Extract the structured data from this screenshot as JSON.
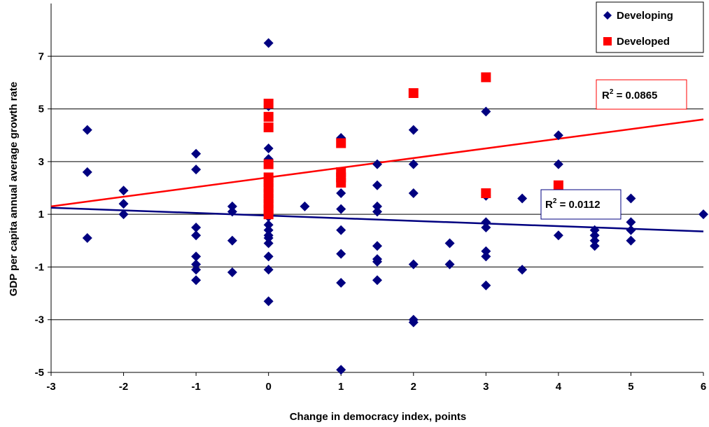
{
  "chart_data": {
    "type": "scatter",
    "title": "",
    "xlabel": "Change in democracy index, points",
    "ylabel": "GDP per capita annual average growth rate",
    "xlim": [
      -3,
      6
    ],
    "ylim": [
      -5,
      9
    ],
    "x_ticks": [
      "-3",
      "-2",
      "-1",
      "0",
      "1",
      "2",
      "3",
      "4",
      "5",
      "6"
    ],
    "y_ticks": [
      "-5",
      "-3",
      "-1",
      "1",
      "3",
      "5",
      "7"
    ],
    "grid": "horizontal",
    "legend_position": "top-right",
    "series": [
      {
        "name": "Developing",
        "marker": "diamond",
        "color": "#000080",
        "points": [
          [
            -2.5,
            4.2
          ],
          [
            -2.5,
            2.6
          ],
          [
            -2.5,
            0.1
          ],
          [
            -2,
            1.9
          ],
          [
            -2,
            1.4
          ],
          [
            -2,
            1.0
          ],
          [
            -1,
            3.3
          ],
          [
            -1,
            2.7
          ],
          [
            -1,
            0.5
          ],
          [
            -1,
            0.2
          ],
          [
            -1,
            -0.6
          ],
          [
            -1,
            -0.9
          ],
          [
            -1,
            -1.1
          ],
          [
            -1,
            -1.5
          ],
          [
            -0.5,
            1.3
          ],
          [
            -0.5,
            1.1
          ],
          [
            -0.5,
            0.0
          ],
          [
            -0.5,
            -1.2
          ],
          [
            0,
            7.5
          ],
          [
            0,
            5.1
          ],
          [
            0,
            3.5
          ],
          [
            0,
            3.1
          ],
          [
            0,
            2.2
          ],
          [
            0,
            1.9
          ],
          [
            0,
            1.6
          ],
          [
            0,
            1.3
          ],
          [
            0,
            0.9
          ],
          [
            0,
            0.6
          ],
          [
            0,
            0.4
          ],
          [
            0,
            0.2
          ],
          [
            0,
            0.1
          ],
          [
            0,
            -0.1
          ],
          [
            0,
            -0.6
          ],
          [
            0,
            -1.1
          ],
          [
            0,
            -2.3
          ],
          [
            0.5,
            1.3
          ],
          [
            1,
            3.9
          ],
          [
            1,
            2.4
          ],
          [
            1,
            1.8
          ],
          [
            1,
            1.2
          ],
          [
            1,
            0.4
          ],
          [
            1,
            -0.5
          ],
          [
            1,
            -1.6
          ],
          [
            1,
            -4.9
          ],
          [
            1.5,
            2.9
          ],
          [
            1.5,
            2.1
          ],
          [
            1.5,
            1.3
          ],
          [
            1.5,
            1.1
          ],
          [
            1.5,
            -0.2
          ],
          [
            1.5,
            -0.7
          ],
          [
            1.5,
            -0.8
          ],
          [
            1.5,
            -1.5
          ],
          [
            2,
            4.2
          ],
          [
            2,
            2.9
          ],
          [
            2,
            1.8
          ],
          [
            2,
            -0.9
          ],
          [
            2,
            -3.0
          ],
          [
            2,
            -3.1
          ],
          [
            2.5,
            -0.1
          ],
          [
            2.5,
            -0.9
          ],
          [
            3,
            4.9
          ],
          [
            3,
            1.7
          ],
          [
            3,
            0.7
          ],
          [
            3,
            0.5
          ],
          [
            3,
            -0.4
          ],
          [
            3,
            -0.6
          ],
          [
            3,
            -1.7
          ],
          [
            3.5,
            1.6
          ],
          [
            3.5,
            -1.1
          ],
          [
            4,
            4.0
          ],
          [
            4,
            2.9
          ],
          [
            4,
            0.2
          ],
          [
            4.5,
            0.4
          ],
          [
            4.5,
            0.2
          ],
          [
            4.5,
            0.0
          ],
          [
            4.5,
            -0.2
          ],
          [
            5,
            1.6
          ],
          [
            5,
            0.7
          ],
          [
            5,
            0.4
          ],
          [
            5,
            0.0
          ],
          [
            6,
            1.0
          ]
        ]
      },
      {
        "name": "Developed",
        "marker": "square",
        "color": "#ff0000",
        "points": [
          [
            0,
            5.2
          ],
          [
            0,
            4.7
          ],
          [
            0,
            4.3
          ],
          [
            0,
            2.9
          ],
          [
            0,
            2.4
          ],
          [
            0,
            2.2
          ],
          [
            0,
            2.0
          ],
          [
            0,
            1.8
          ],
          [
            0,
            1.6
          ],
          [
            0,
            1.4
          ],
          [
            0,
            1.2
          ],
          [
            0,
            1.0
          ],
          [
            1,
            3.7
          ],
          [
            1,
            2.6
          ],
          [
            1,
            2.4
          ],
          [
            1,
            2.2
          ],
          [
            2,
            5.6
          ],
          [
            3,
            6.2
          ],
          [
            3,
            1.8
          ],
          [
            4,
            2.1
          ]
        ]
      }
    ],
    "trendlines": [
      {
        "series": "Developed",
        "color": "#ff0000",
        "from": [
          -3,
          1.3
        ],
        "to": [
          6,
          4.6
        ],
        "label": "R² = 0.0865",
        "label_sup": "2"
      },
      {
        "series": "Developing",
        "color": "#000080",
        "from": [
          -3,
          1.25
        ],
        "to": [
          6,
          0.35
        ],
        "label": "R² = 0.0112",
        "label_sup": "2"
      }
    ]
  },
  "legend": {
    "developing_label": "Developing",
    "developed_label": "Developed"
  },
  "annotations": {
    "r2_developed": {
      "prefix": "R",
      "sup": "2",
      "rest": " = 0.0865"
    },
    "r2_developing": {
      "prefix": "R",
      "sup": "2",
      "rest": " = 0.0112"
    }
  },
  "colors": {
    "developing": "#000080",
    "developed": "#ff0000",
    "grid": "#000000"
  }
}
